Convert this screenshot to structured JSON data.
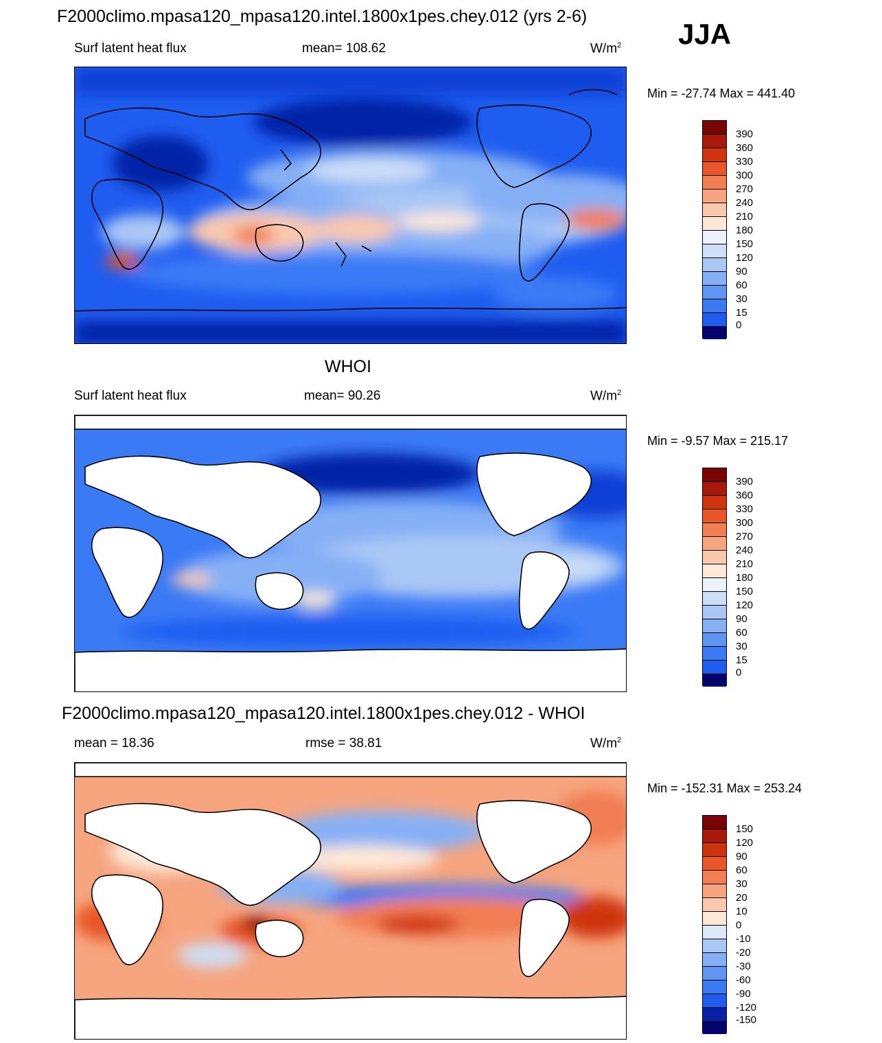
{
  "header": {
    "title": "F2000climo.mpasa120_mpasa120.intel.1800x1pes.chey.012 (yrs 2-6)",
    "season": "JJA"
  },
  "colors": {
    "model_levels": [
      "#03046b",
      "#0621a6",
      "#0d3fd6",
      "#1f5df0",
      "#3b7af5",
      "#5f96f5",
      "#86b0f5",
      "#aac8f5",
      "#cddff7",
      "#ecf2fb",
      "#fde8d8",
      "#fac8ad",
      "#f6a57f",
      "#f27e52",
      "#e95628",
      "#cf340e",
      "#a8190b",
      "#7a0404"
    ],
    "diff_levels": [
      "#03046b",
      "#0621a6",
      "#0d3fd6",
      "#1f5df0",
      "#3b7af5",
      "#5f96f5",
      "#86b0f5",
      "#aac8f5",
      "#dde9fa",
      "#fde8d8",
      "#fac8ad",
      "#f6a57f",
      "#f27e52",
      "#e95628",
      "#cf340e",
      "#a8190b",
      "#7a0404"
    ]
  },
  "chart_data": [
    {
      "type": "heatmap",
      "title": "F2000climo.mpasa120_mpasa120.intel.1800x1pes.chey.012 (yrs 2-6)",
      "left_label": "Surf latent heat flux",
      "mean_text": "mean= 108.62",
      "units": "W/m",
      "units_exp": "2",
      "minmax": "Min = -27.74 Max = 441.40",
      "levels": [
        "390",
        "360",
        "330",
        "300",
        "270",
        "240",
        "210",
        "180",
        "150",
        "120",
        "90",
        "60",
        "30",
        "15",
        "0"
      ]
    },
    {
      "type": "heatmap",
      "title": "WHOI",
      "left_label": "Surf latent heat flux",
      "mean_text": "mean=  90.26",
      "units": "W/m",
      "units_exp": "2",
      "minmax": "Min =  -9.57 Max = 215.17",
      "levels": [
        "390",
        "360",
        "330",
        "300",
        "270",
        "240",
        "210",
        "180",
        "150",
        "120",
        "90",
        "60",
        "30",
        "15",
        "0"
      ]
    },
    {
      "type": "heatmap",
      "title": "F2000climo.mpasa120_mpasa120.intel.1800x1pes.chey.012 - WHOI",
      "left_label": "mean =  18.36",
      "mean_text": "rmse =  38.81",
      "units": "W/m",
      "units_exp": "2",
      "minmax": "Min = -152.31 Max = 253.24",
      "levels": [
        "150",
        "120",
        "90",
        "60",
        "30",
        "20",
        "10",
        "0",
        "-10",
        "-20",
        "-30",
        "-60",
        "-90",
        "-120",
        "-150"
      ]
    }
  ]
}
